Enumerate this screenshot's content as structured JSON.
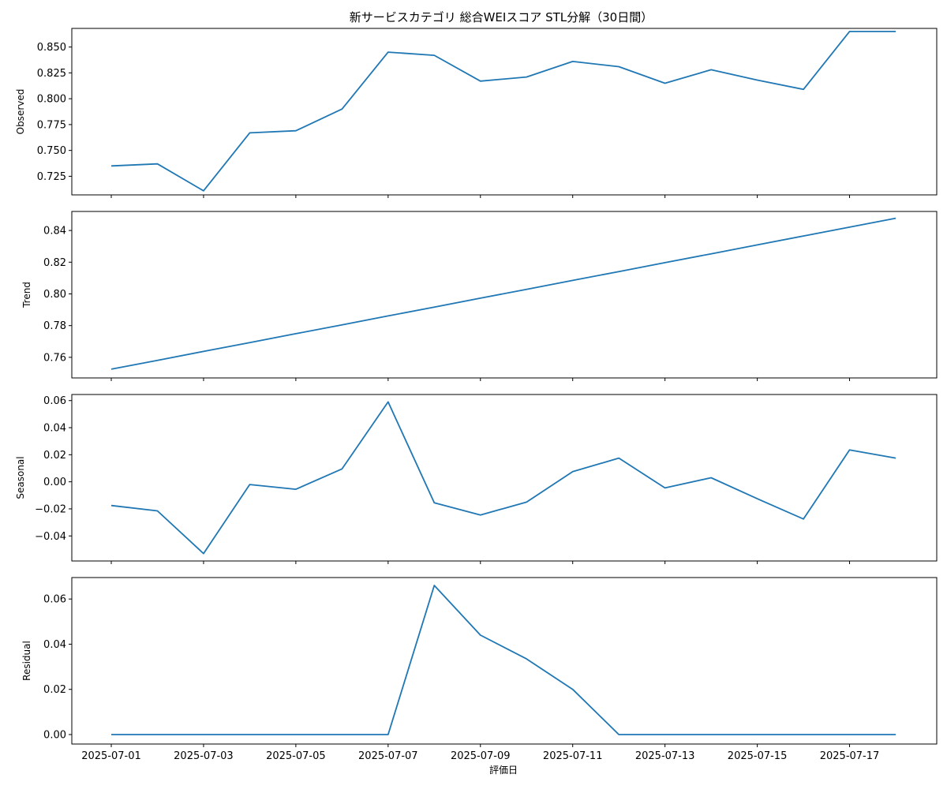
{
  "chart_data": {
    "type": "line",
    "title": "新サービスカテゴリ 総合WEIスコア STL分解（30日間）",
    "xlabel": "評価日",
    "x": [
      "2025-07-01",
      "2025-07-02",
      "2025-07-03",
      "2025-07-04",
      "2025-07-05",
      "2025-07-06",
      "2025-07-07",
      "2025-07-08",
      "2025-07-09",
      "2025-07-10",
      "2025-07-11",
      "2025-07-12",
      "2025-07-13",
      "2025-07-14",
      "2025-07-15",
      "2025-07-16",
      "2025-07-17",
      "2025-07-18"
    ],
    "x_tick_labels": [
      "2025-07-01",
      "2025-07-03",
      "2025-07-05",
      "2025-07-07",
      "2025-07-09",
      "2025-07-11",
      "2025-07-13",
      "2025-07-15",
      "2025-07-17"
    ],
    "line_color": "#1f77b4",
    "grid": false,
    "panels": [
      {
        "name": "observed",
        "ylabel": "Observed",
        "ylim": [
          0.707,
          0.868
        ],
        "yticks": [
          0.725,
          0.75,
          0.775,
          0.8,
          0.825,
          0.85
        ],
        "ytick_labels": [
          "0.725",
          "0.750",
          "0.775",
          "0.800",
          "0.825",
          "0.850"
        ],
        "values": [
          0.735,
          0.737,
          0.711,
          0.767,
          0.769,
          0.79,
          0.845,
          0.842,
          0.817,
          0.821,
          0.836,
          0.831,
          0.815,
          0.828,
          0.818,
          0.809,
          0.865,
          0.865
        ]
      },
      {
        "name": "trend",
        "ylabel": "Trend",
        "ylim": [
          0.747,
          0.852
        ],
        "yticks": [
          0.76,
          0.78,
          0.8,
          0.82,
          0.84
        ],
        "ytick_labels": [
          "0.76",
          "0.78",
          "0.80",
          "0.82",
          "0.84"
        ],
        "values": [
          0.7525,
          0.7581,
          0.7637,
          0.7693,
          0.7749,
          0.7805,
          0.7861,
          0.7917,
          0.7973,
          0.8029,
          0.8085,
          0.8141,
          0.8197,
          0.8253,
          0.8309,
          0.8365,
          0.8421,
          0.8477
        ]
      },
      {
        "name": "seasonal",
        "ylabel": "Seasonal",
        "ylim": [
          -0.0585,
          0.0645
        ],
        "yticks": [
          -0.04,
          -0.02,
          0.0,
          0.02,
          0.04,
          0.06
        ],
        "ytick_labels": [
          "−0.04",
          "−0.02",
          "0.00",
          "0.02",
          "0.04",
          "0.06"
        ],
        "values": [
          -0.0175,
          -0.0215,
          -0.053,
          -0.002,
          -0.0055,
          0.0095,
          0.059,
          -0.0155,
          -0.0245,
          -0.015,
          0.0075,
          0.0175,
          -0.0045,
          0.003,
          -0.0125,
          -0.0275,
          0.0235,
          0.0175
        ]
      },
      {
        "name": "residual",
        "ylabel": "Residual",
        "ylim": [
          -0.0042,
          0.0695
        ],
        "yticks": [
          0.0,
          0.02,
          0.04,
          0.06
        ],
        "ytick_labels": [
          "0.00",
          "0.02",
          "0.04",
          "0.06"
        ],
        "values": [
          0,
          0,
          0,
          0,
          0,
          0,
          0,
          0.066,
          0.044,
          0.0335,
          0.02,
          0,
          0,
          0,
          0,
          0,
          0,
          0
        ]
      }
    ]
  }
}
